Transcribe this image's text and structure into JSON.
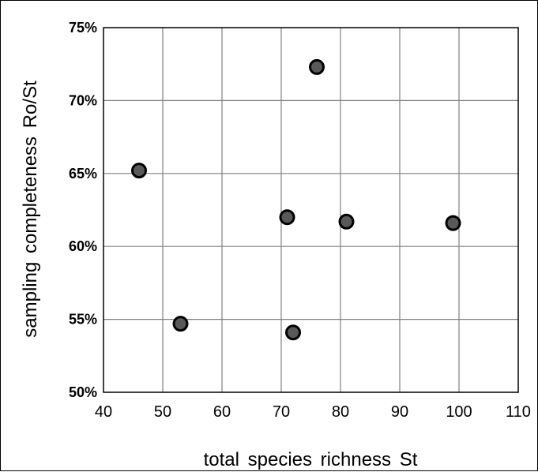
{
  "chart_data": {
    "type": "scatter",
    "title": "",
    "xlabel": "total  species  richness  St",
    "ylabel": "sampling  completeness  Ro/St",
    "xlim": [
      40,
      110
    ],
    "ylim": [
      0.5,
      0.75
    ],
    "x_ticks": [
      40,
      50,
      60,
      70,
      80,
      90,
      100,
      110
    ],
    "x_tick_labels": [
      "40",
      "50",
      "60",
      "70",
      "80",
      "90",
      "100",
      "110"
    ],
    "y_ticks": [
      0.5,
      0.55,
      0.6,
      0.65,
      0.7,
      0.75
    ],
    "y_tick_labels": [
      "50%",
      "55%",
      "60%",
      "65%",
      "70%",
      "75%"
    ],
    "grid": true,
    "legend": "none",
    "marker_fill": "#595959",
    "marker_edge": "#000000",
    "grid_color": "#808080",
    "points": [
      {
        "x": 46,
        "y": 0.652
      },
      {
        "x": 53,
        "y": 0.547
      },
      {
        "x": 71,
        "y": 0.62
      },
      {
        "x": 72,
        "y": 0.541
      },
      {
        "x": 76,
        "y": 0.723
      },
      {
        "x": 81,
        "y": 0.617
      },
      {
        "x": 99,
        "y": 0.616
      }
    ]
  }
}
